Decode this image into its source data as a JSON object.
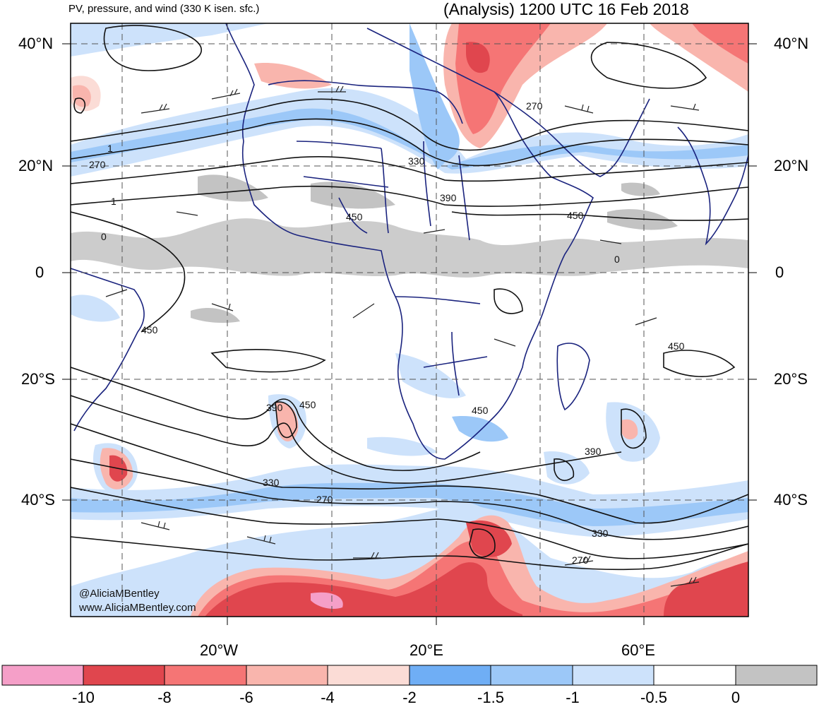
{
  "titles": {
    "left": "PV, pressure, and wind (330 K isen. sfc.)",
    "right": "(Analysis) 1200 UTC 16 Feb 2018"
  },
  "lat_labels": [
    "40°N",
    "20°N",
    "0",
    "20°S",
    "40°S"
  ],
  "lon_labels": [
    "20°W",
    "20°E",
    "60°E"
  ],
  "contour_labels": [
    "270",
    "330",
    "390",
    "450",
    "270",
    "1",
    "1",
    "0",
    "450",
    "450",
    "450",
    "390",
    "450",
    "330",
    "270",
    "390",
    "330",
    "270",
    "450",
    "0"
  ],
  "colorbar": {
    "labels": [
      "-10",
      "-8",
      "-6",
      "-4",
      "-2",
      "-1.5",
      "-1",
      "-0.5",
      "0"
    ],
    "colors": [
      "#f59fc8",
      "#e0464e",
      "#f57575",
      "#f9b5ad",
      "#fbdcd6",
      "#6faef5",
      "#9cc8f8",
      "#cde2fb",
      "#ffffff",
      "#c3c3c3"
    ]
  },
  "credits": {
    "handle": "@AliciaMBentley",
    "url": "www.AliciaMBentley.com"
  }
}
